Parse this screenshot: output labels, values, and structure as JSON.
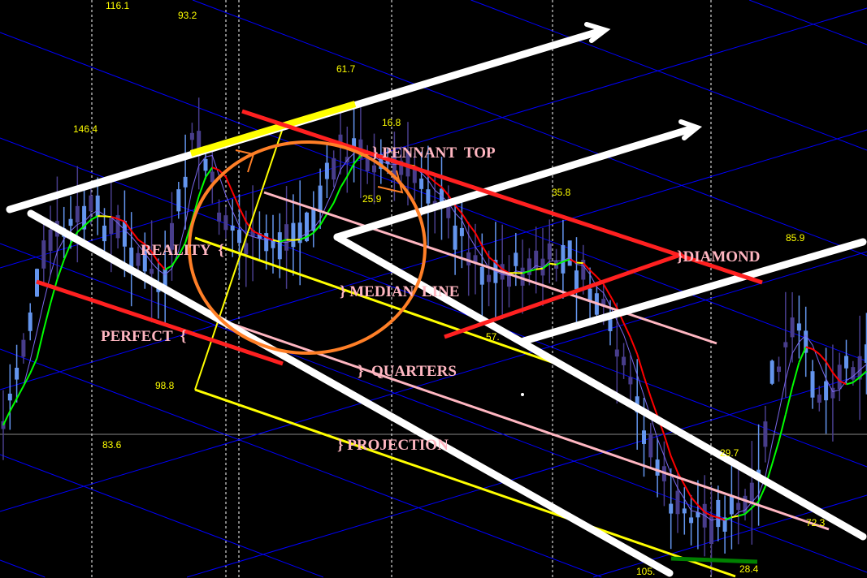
{
  "chart_data": {
    "type": "candlestick",
    "title": "",
    "grid": true,
    "colors": {
      "background": "#000000",
      "bull_candle": "#6495ed",
      "bear_candle": "#483d8b",
      "pitchfork_lines": "#ffffff",
      "pennant_lines": "#ff2020",
      "median_projection": "#ffff00",
      "quarters": "#ffb6c1",
      "circle": "#ff7f27",
      "grid_diagonal": "#0000ff",
      "value_labels": "#ffff00"
    },
    "value_labels": [
      "116.1",
      "93.2",
      "61.7",
      "146.4",
      "16.8",
      "25.9",
      "35.8",
      "85.9",
      "98.8",
      "83.6",
      "57.",
      "29.7",
      "105.",
      "28.4",
      "72.3"
    ],
    "annotations": {
      "pennant_top": "} PENNANT  TOP",
      "reality": "REALITY  {",
      "diamond": "}DIAMOND",
      "median_line": "} MEDIAN  LINE",
      "perfect": "PERFECT  {",
      "quarters": "}  QUARTERS",
      "projection": "} PROJECTION"
    }
  }
}
